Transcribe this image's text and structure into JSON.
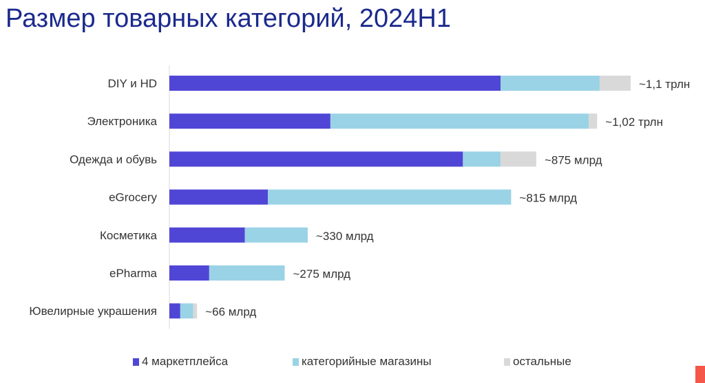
{
  "title": "Размер товарных категорий, 2024H1",
  "chart_data": {
    "type": "bar",
    "orientation": "horizontal",
    "stacked": true,
    "title": "Размер товарных категорий, 2024H1",
    "unit": "млрд руб (оценка)",
    "categories": [
      "DIY и HD",
      "Электроника",
      "Одежда и обувь",
      "eGrocery",
      "Косметика",
      "ePharma",
      "Ювелирные украшения"
    ],
    "series": [
      {
        "name": "4 маркетплейса",
        "color": "#5046d6",
        "values": [
          790,
          384,
          700,
          235,
          180,
          95,
          26
        ]
      },
      {
        "name": "категорийные магазины",
        "color": "#9ad3e6",
        "values": [
          236,
          616,
          90,
          580,
          150,
          180,
          31
        ]
      },
      {
        "name": "остальные",
        "color": "#d9d9d9",
        "values": [
          74,
          20,
          85,
          0,
          0,
          0,
          9
        ]
      }
    ],
    "data_labels": [
      "~1,1 трлн",
      "~1,02 трлн",
      "~875 млрд",
      "~815 млрд",
      "~330 млрд",
      "~275 млрд",
      "~66 млрд"
    ],
    "xlim": [
      0,
      1100
    ],
    "grid": false,
    "legend_position": "bottom"
  }
}
